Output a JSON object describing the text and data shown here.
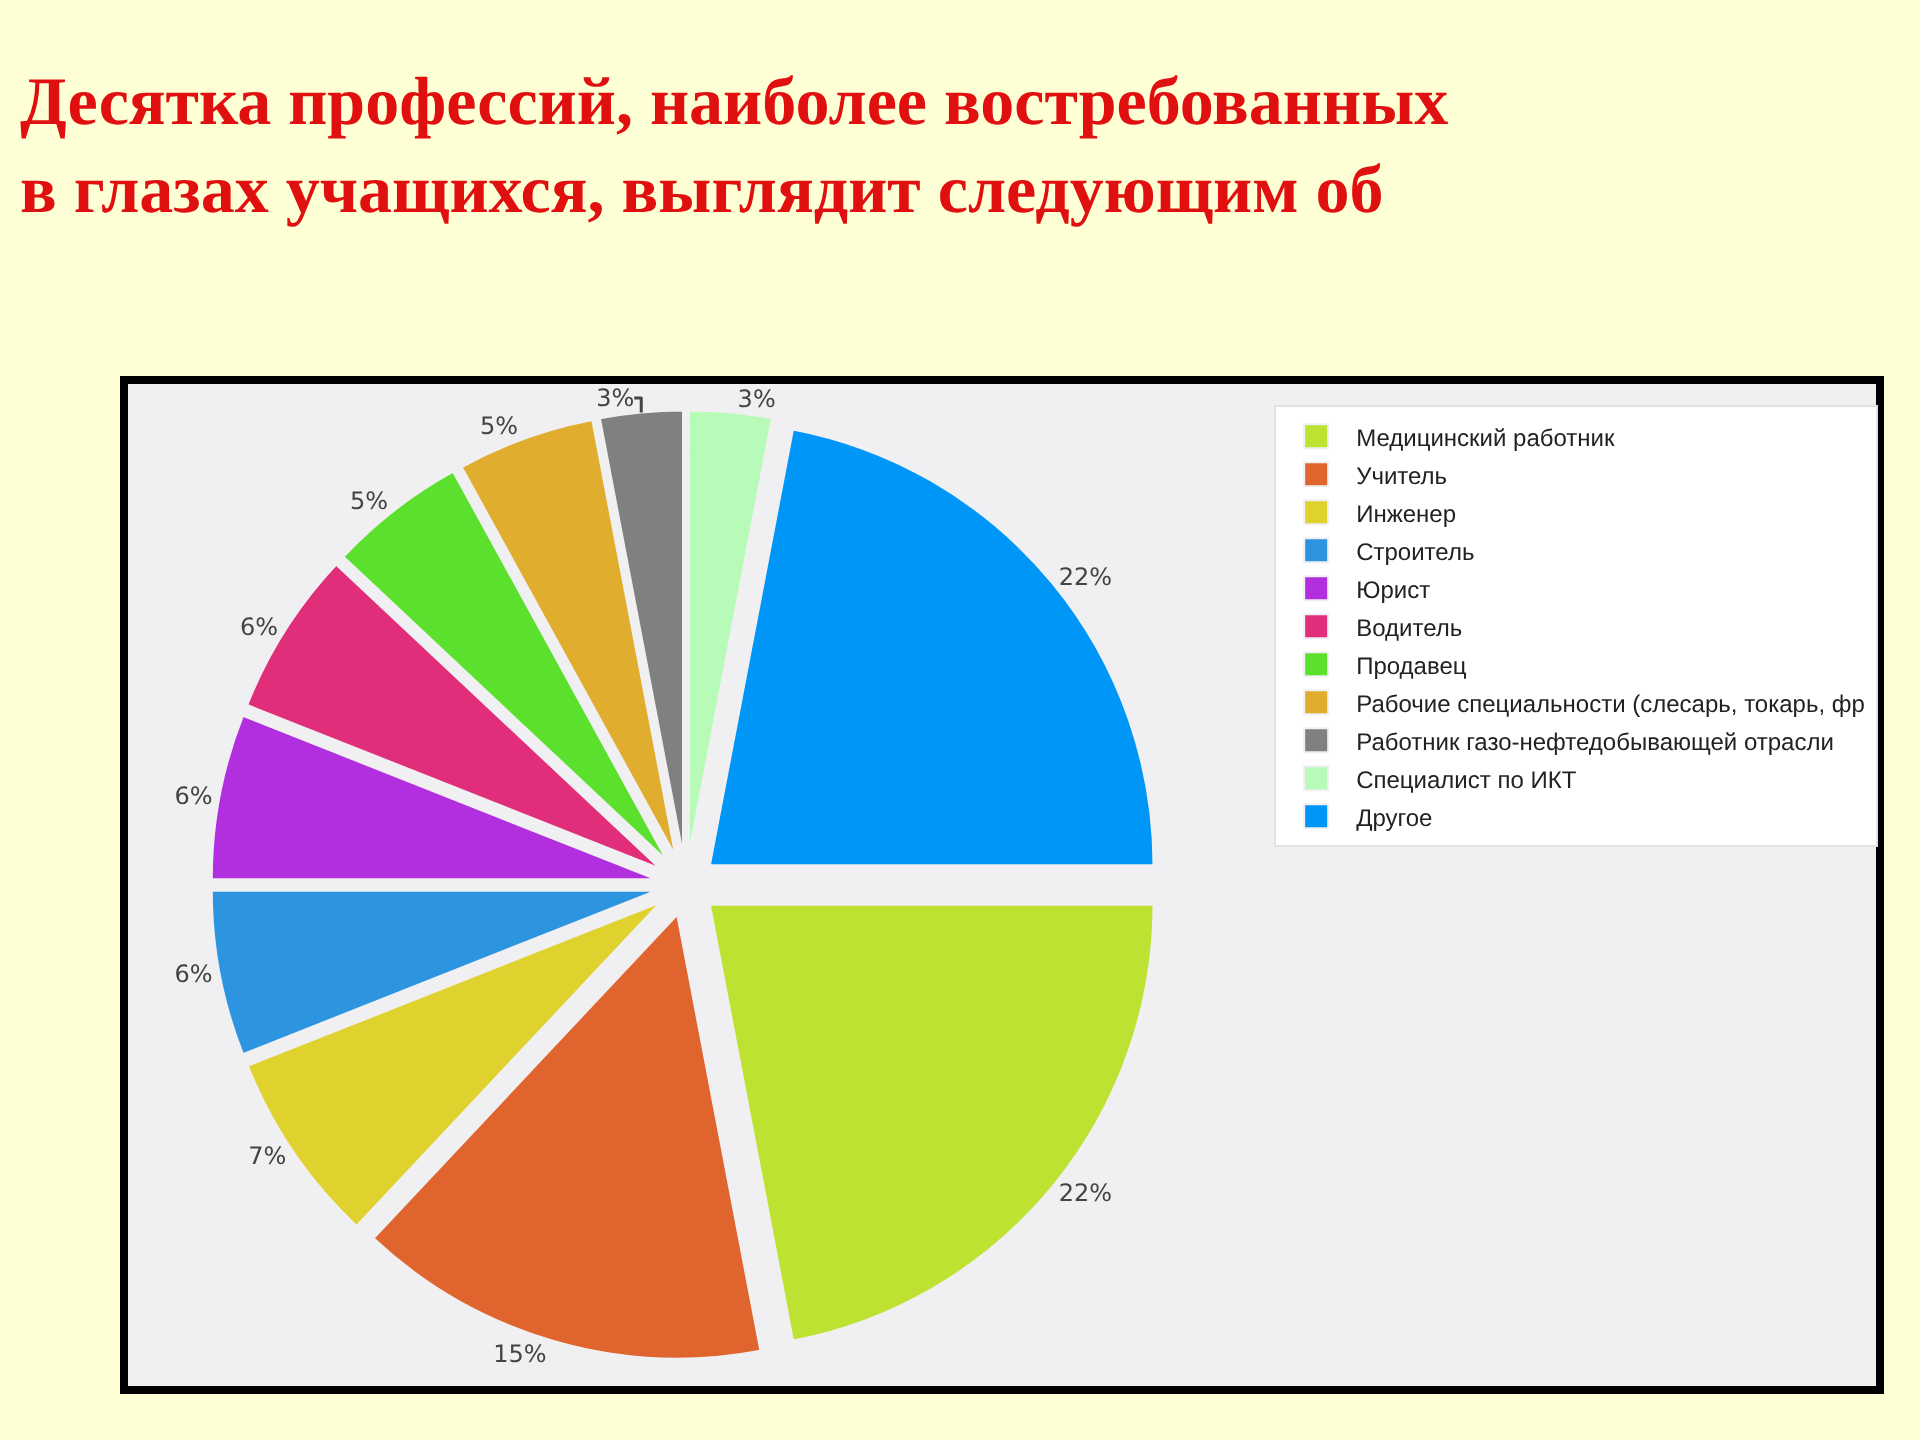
{
  "chart_data": {
    "type": "pie",
    "title": "Десятка профессий, наиболее востребованных в глазах учащихся, выглядит следующим об",
    "categories": [
      "Медицинский работник",
      "Учитель",
      "Инженер",
      "Строитель",
      "Юрист",
      "Водитель",
      "Продавец",
      "Рабочие специальности (слесарь, токарь, фр",
      "Работник газо-нефтедобывающей отрасли",
      "Специалист по ИКТ",
      "Другое"
    ],
    "values": [
      22,
      15,
      7,
      6,
      6,
      6,
      5,
      5,
      3,
      3,
      22
    ],
    "colors": [
      "#bde231",
      "#e0642e",
      "#e0d22e",
      "#2d95e0",
      "#b22fe0",
      "#e02e7b",
      "#5ce02e",
      "#e0ad2e",
      "#808080",
      "#b8fbb8",
      "#0096f8"
    ],
    "value_labels": [
      "22%",
      "15%",
      "7%",
      "6%",
      "6%",
      "6%",
      "5%",
      "5%",
      "3%",
      "3%",
      "22%"
    ],
    "legend": "top right"
  }
}
